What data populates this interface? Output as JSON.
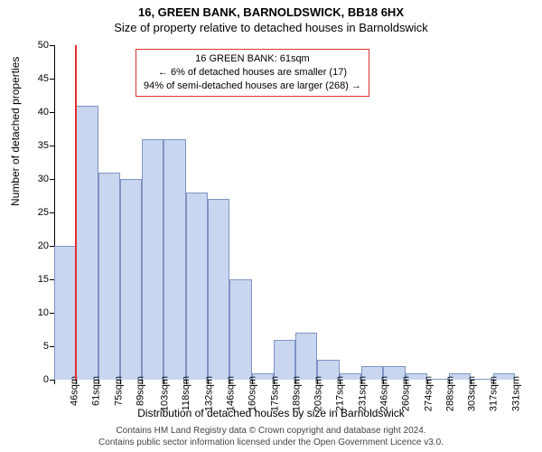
{
  "header": {
    "line1": "16, GREEN BANK, BARNOLDSWICK, BB18 6HX",
    "line2": "Size of property relative to detached houses in Barnoldswick"
  },
  "chart": {
    "type": "histogram",
    "ylabel": "Number of detached properties",
    "xlabel": "Distribution of detached houses by size in Barnoldswick",
    "ylim": [
      0,
      50
    ],
    "ytick_step": 5,
    "yticks": [
      0,
      5,
      10,
      15,
      20,
      25,
      30,
      35,
      40,
      45,
      50
    ],
    "x_categories": [
      "46sqm",
      "61sqm",
      "75sqm",
      "89sqm",
      "103sqm",
      "118sqm",
      "132sqm",
      "146sqm",
      "160sqm",
      "175sqm",
      "189sqm",
      "203sqm",
      "217sqm",
      "231sqm",
      "246sqm",
      "260sqm",
      "274sqm",
      "288sqm",
      "303sqm",
      "317sqm",
      "331sqm"
    ],
    "values": [
      20,
      41,
      31,
      30,
      36,
      36,
      28,
      27,
      15,
      1,
      6,
      7,
      3,
      1,
      2,
      2,
      1,
      0,
      1,
      0,
      1
    ],
    "bar_color": "#c9d6ef",
    "bar_border": "#7f93c4",
    "bar_width_ratio": 1.0,
    "background_color": "#ffffff",
    "marker": {
      "index": 1,
      "color": "#e03030",
      "height_value": 50
    }
  },
  "callout": {
    "border_color": "#e03030",
    "lines": [
      "16 GREEN BANK: 61sqm",
      "← 6% of detached houses are smaller (17)",
      "94% of semi-detached houses are larger (268) →"
    ]
  },
  "footer": {
    "line1": "Contains HM Land Registry data © Crown copyright and database right 2024.",
    "line2": "Contains public sector information licensed under the Open Government Licence v3.0."
  }
}
